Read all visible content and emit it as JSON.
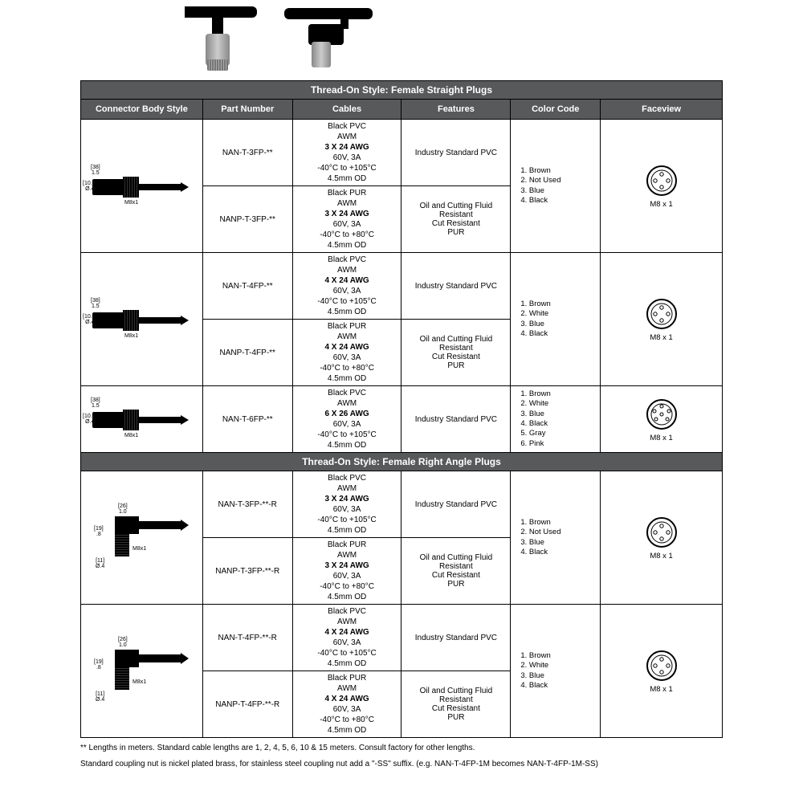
{
  "sections": [
    {
      "title": "Thread-On Style: Female Straight Plugs",
      "groups": [
        {
          "conn": "straight",
          "dims": {
            "top": "[38]\n1.5",
            "left": "[10.2]\nØ.4",
            "m8": "M8x1"
          },
          "rows": [
            {
              "part": "NAN-T-3FP-**",
              "cables": [
                "Black PVC",
                "AWM",
                "3 X 24 AWG",
                "60V, 3A",
                "-40°C to +105°C",
                "4.5mm OD"
              ],
              "feat": [
                "Industry Standard PVC"
              ]
            },
            {
              "part": "NANP-T-3FP-**",
              "cables": [
                "Black PUR",
                "AWM",
                "3 X 24 AWG",
                "60V, 3A",
                "-40°C to +80°C",
                "4.5mm OD"
              ],
              "feat": [
                "Oil and Cutting Fluid",
                "Resistant",
                "Cut Resistant",
                "PUR"
              ]
            }
          ],
          "colorcode": [
            "1. Brown",
            "2. Not Used",
            "3. Blue",
            "4. Black"
          ],
          "pins": 4,
          "facelabel": "M8 x 1"
        },
        {
          "conn": "straight",
          "dims": {
            "top": "[38]\n1.5",
            "left": "[10.2]\nØ.4",
            "m8": "M8x1"
          },
          "rows": [
            {
              "part": "NAN-T-4FP-**",
              "cables": [
                "Black PVC",
                "AWM",
                "4 X 24 AWG",
                "60V, 3A",
                "-40°C to +105°C",
                "4.5mm OD"
              ],
              "feat": [
                "Industry Standard PVC"
              ]
            },
            {
              "part": "NANP-T-4FP-**",
              "cables": [
                "Black PUR",
                "AWM",
                "4 X 24 AWG",
                "60V, 3A",
                "-40°C to +80°C",
                "4.5mm OD"
              ],
              "feat": [
                "Oil and Cutting Fluid",
                "Resistant",
                "Cut Resistant",
                "PUR"
              ]
            }
          ],
          "colorcode": [
            "1. Brown",
            "2. White",
            "3. Blue",
            "4. Black"
          ],
          "pins": 4,
          "facelabel": "M8 x 1"
        },
        {
          "conn": "straight",
          "dims": {
            "top": "[38]\n1.5",
            "left": "[10.2]\nØ.4",
            "m8": "M8x1"
          },
          "rows": [
            {
              "part": "NAN-T-6FP-**",
              "cables": [
                "Black PVC",
                "AWM",
                "6 X 26 AWG",
                "60V, 3A",
                "-40°C to +105°C",
                "4.5mm OD"
              ],
              "feat": [
                "Industry Standard PVC"
              ]
            }
          ],
          "colorcode": [
            "1. Brown",
            "2. White",
            "3. Blue",
            "4. Black",
            "5. Gray",
            "6. Pink"
          ],
          "pins": 6,
          "facelabel": "M8 x 1"
        }
      ]
    },
    {
      "title": "Thread-On Style: Female Right Angle Plugs",
      "groups": [
        {
          "conn": "angle",
          "dims": {
            "top": "[26]\n1.0",
            "left1": "[19]\n.8",
            "left2": "[11]\nØ.4",
            "m8": "M8x1"
          },
          "rows": [
            {
              "part": "NAN-T-3FP-**-R",
              "cables": [
                "Black PVC",
                "AWM",
                "3 X 24 AWG",
                "60V, 3A",
                "-40°C to +105°C",
                "4.5mm OD"
              ],
              "feat": [
                "Industry Standard PVC"
              ]
            },
            {
              "part": "NANP-T-3FP-**-R",
              "cables": [
                "Black PUR",
                "AWM",
                "3 X 24 AWG",
                "60V, 3A",
                "-40°C to +80°C",
                "4.5mm OD"
              ],
              "feat": [
                "Oil and Cutting Fluid",
                "Resistant",
                "Cut Resistant",
                "PUR"
              ]
            }
          ],
          "colorcode": [
            "1. Brown",
            "2. Not Used",
            "3. Blue",
            "4. Black"
          ],
          "pins": 4,
          "facelabel": "M8 x 1"
        },
        {
          "conn": "angle",
          "dims": {
            "top": "[26]\n1.0",
            "left1": "[19]\n.8",
            "left2": "[11]\nØ.4",
            "m8": "M8x1"
          },
          "rows": [
            {
              "part": "NAN-T-4FP-**-R",
              "cables": [
                "Black PVC",
                "AWM",
                "4 X 24 AWG",
                "60V, 3A",
                "-40°C to +105°C",
                "4.5mm OD"
              ],
              "feat": [
                "Industry Standard PVC"
              ]
            },
            {
              "part": "NANP-T-4FP-**-R",
              "cables": [
                "Black PUR",
                "AWM",
                "4 X 24 AWG",
                "60V, 3A",
                "-40°C to +80°C",
                "4.5mm OD"
              ],
              "feat": [
                "Oil and Cutting Fluid",
                "Resistant",
                "Cut Resistant",
                "PUR"
              ]
            }
          ],
          "colorcode": [
            "1. Brown",
            "2. White",
            "3. Blue",
            "4. Black"
          ],
          "pins": 4,
          "facelabel": "M8 x 1"
        }
      ]
    }
  ],
  "columns": [
    "Connector Body Style",
    "Part Number",
    "Cables",
    "Features",
    "Color Code",
    "Faceview"
  ],
  "footnotes": [
    "** Lengths in meters.  Standard cable lengths are 1, 2, 4, 5, 6, 10 & 15 meters. Consult factory for other lengths.",
    "Standard coupling nut is nickel plated brass, for stainless steel coupling nut add a \"-SS\" suffix. (e.g. NAN-T-4FP-1M becomes NAN-T-4FP-1M-SS)"
  ],
  "colwidths": [
    "19%",
    "14%",
    "17%",
    "17%",
    "14%",
    "19%"
  ]
}
